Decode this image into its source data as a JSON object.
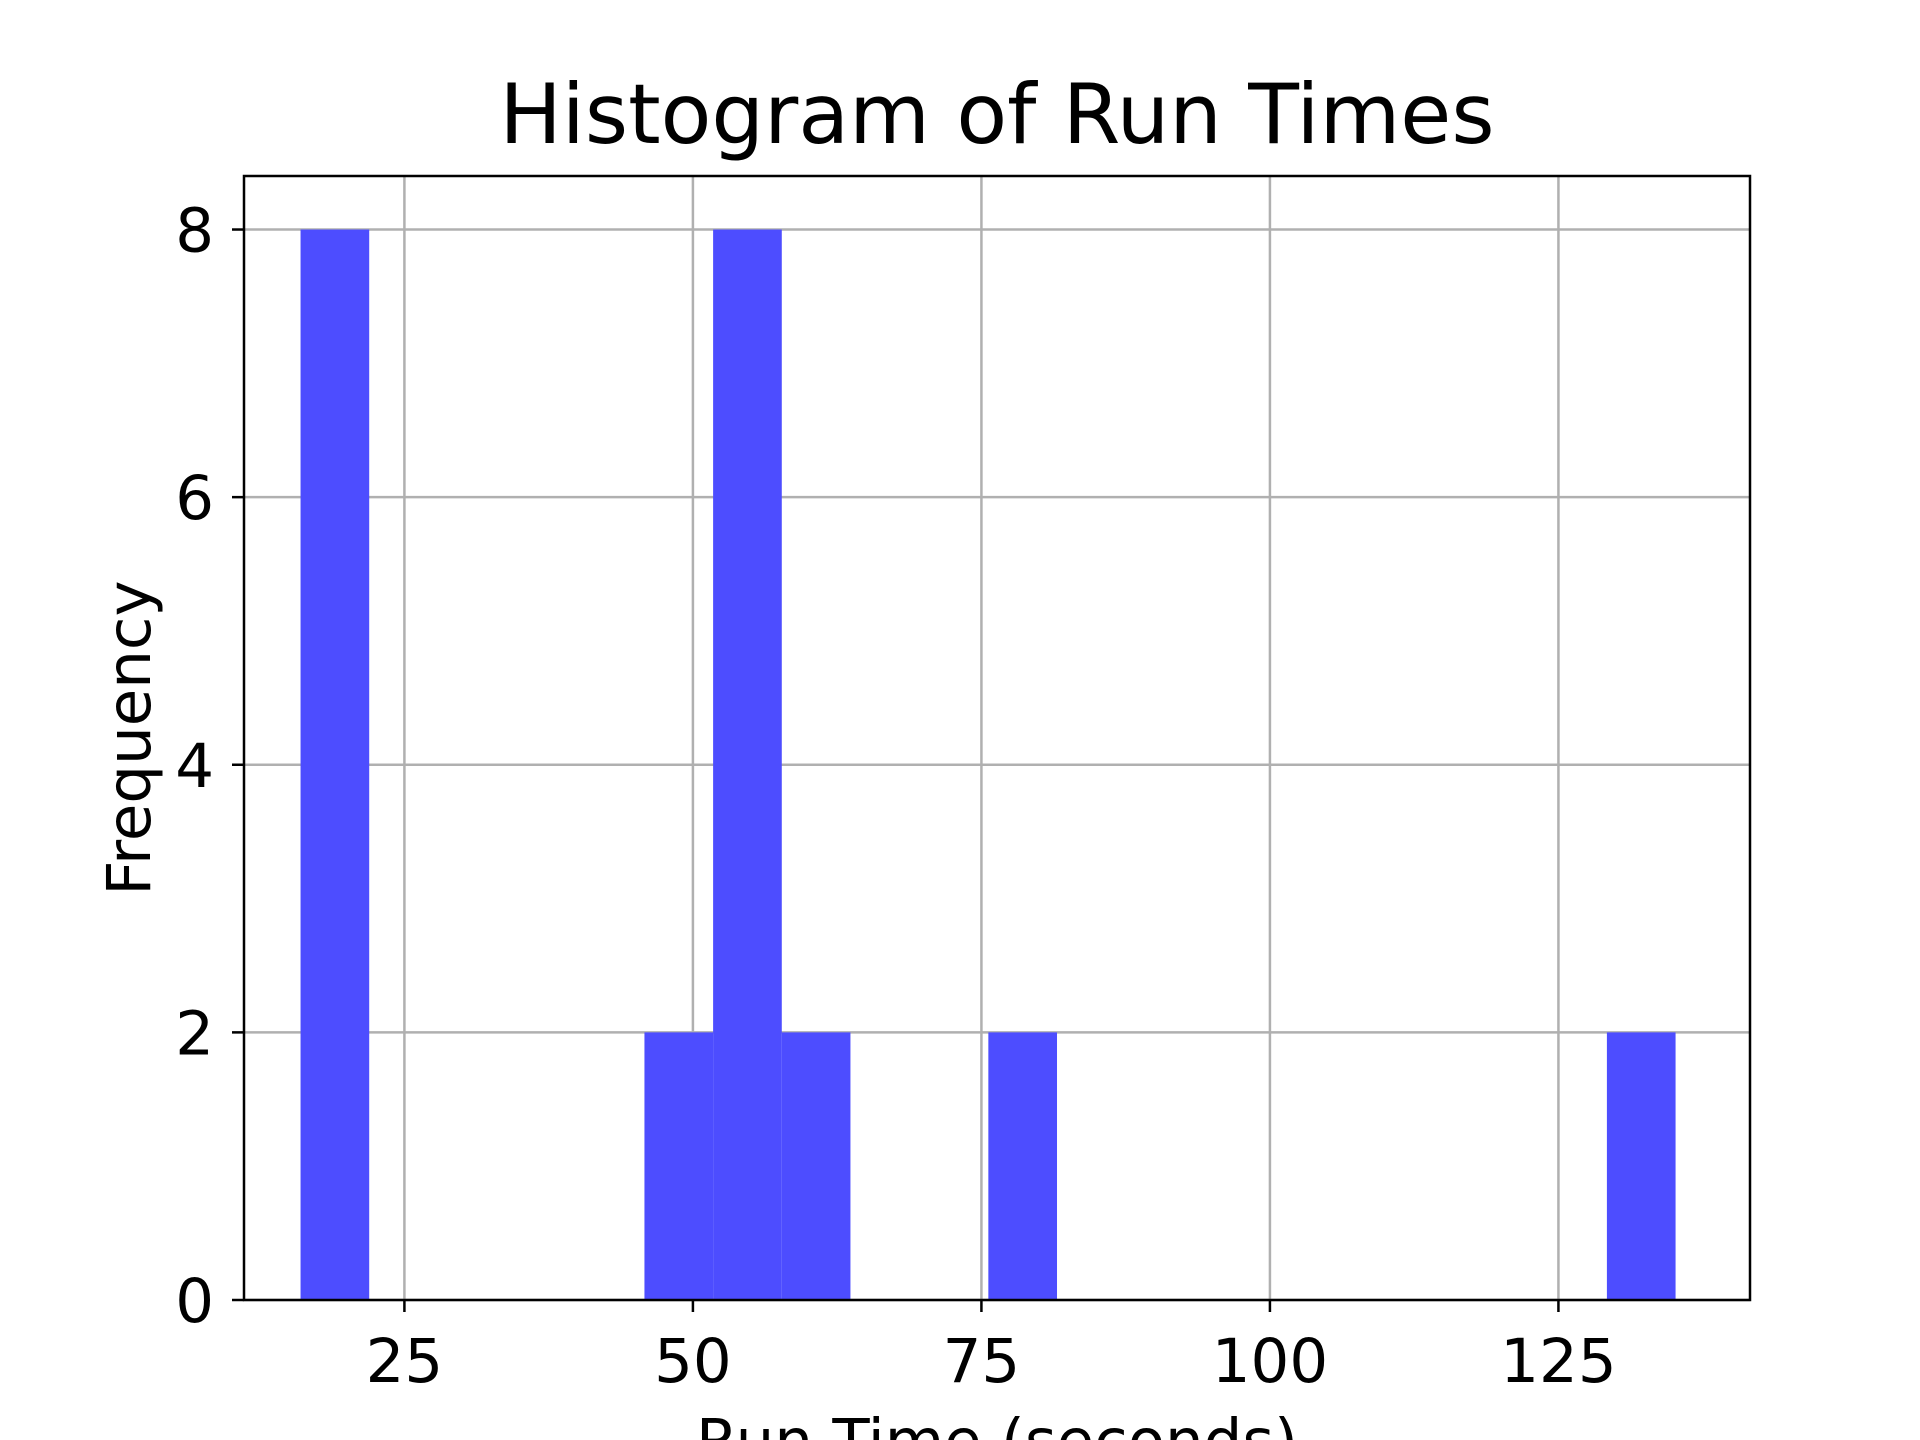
{
  "chart_data": {
    "type": "bar",
    "title": "Histogram of Run Times",
    "xlabel": "Run Time (seconds)",
    "ylabel": "Frequency",
    "xlim": [
      11.1,
      141.6
    ],
    "ylim": [
      0,
      8.4
    ],
    "xticks": [
      25,
      50,
      75,
      100,
      125
    ],
    "yticks": [
      0,
      2,
      4,
      6,
      8
    ],
    "grid": true,
    "bin_width": 5.95,
    "bins": [
      {
        "start": 16.0,
        "end": 21.95,
        "count": 8
      },
      {
        "start": 45.8,
        "end": 51.75,
        "count": 2
      },
      {
        "start": 51.75,
        "end": 57.7,
        "count": 8
      },
      {
        "start": 57.7,
        "end": 63.65,
        "count": 2
      },
      {
        "start": 75.6,
        "end": 81.55,
        "count": 2
      },
      {
        "start": 129.2,
        "end": 135.15,
        "count": 2
      }
    ],
    "colors": {
      "bar": "#4d4dff",
      "grid": "#b0b0b0",
      "axes": "#000000"
    }
  }
}
